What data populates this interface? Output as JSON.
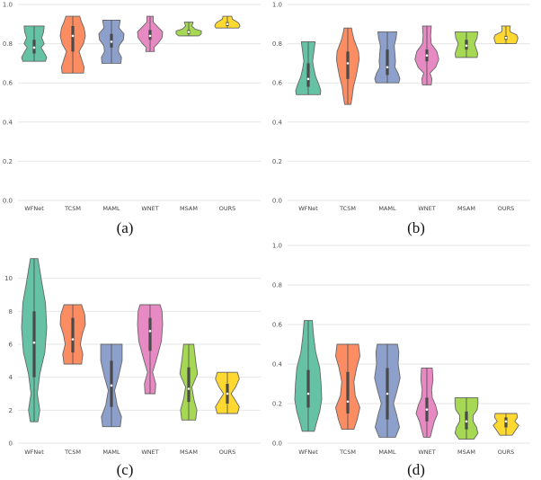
{
  "chart_data": [
    {
      "type": "violin",
      "caption": "(a)",
      "categories": [
        "WFNet",
        "TCSM",
        "MAML",
        "WNET",
        "MSAM",
        "OURS"
      ],
      "ylim": [
        0.0,
        1.0
      ],
      "yticks": [
        "0.0",
        "0.2",
        "0.4",
        "0.6",
        "0.8",
        "1.0"
      ],
      "series": [
        {
          "name": "WFNet",
          "color": "#66c2a5",
          "min": 0.71,
          "max": 0.89,
          "q1": 0.75,
          "median": 0.78,
          "q3": 0.82,
          "density": [
            [
              0.71,
              0.9
            ],
            [
              0.73,
              1.0
            ],
            [
              0.76,
              0.75
            ],
            [
              0.78,
              0.55
            ],
            [
              0.8,
              0.8
            ],
            [
              0.83,
              0.6
            ],
            [
              0.86,
              0.75
            ],
            [
              0.89,
              0.8
            ]
          ]
        },
        {
          "name": "TCSM",
          "color": "#fc8d62",
          "min": 0.65,
          "max": 0.94,
          "q1": 0.76,
          "median": 0.84,
          "q3": 0.89,
          "density": [
            [
              0.65,
              0.85
            ],
            [
              0.68,
              0.9
            ],
            [
              0.72,
              0.7
            ],
            [
              0.76,
              0.5
            ],
            [
              0.8,
              0.85
            ],
            [
              0.84,
              1.0
            ],
            [
              0.88,
              0.9
            ],
            [
              0.91,
              0.7
            ],
            [
              0.94,
              0.55
            ]
          ]
        },
        {
          "name": "MAML",
          "color": "#8da0cb",
          "min": 0.7,
          "max": 0.92,
          "q1": 0.78,
          "median": 0.81,
          "q3": 0.85,
          "density": [
            [
              0.7,
              0.75
            ],
            [
              0.73,
              0.8
            ],
            [
              0.76,
              0.55
            ],
            [
              0.79,
              0.6
            ],
            [
              0.82,
              0.95
            ],
            [
              0.85,
              1.0
            ],
            [
              0.88,
              0.6
            ],
            [
              0.92,
              0.7
            ]
          ]
        },
        {
          "name": "WNET",
          "color": "#e78ac3",
          "min": 0.76,
          "max": 0.94,
          "q1": 0.82,
          "median": 0.84,
          "q3": 0.87,
          "density": [
            [
              0.76,
              0.35
            ],
            [
              0.78,
              0.3
            ],
            [
              0.8,
              0.6
            ],
            [
              0.83,
              0.95
            ],
            [
              0.86,
              1.0
            ],
            [
              0.88,
              0.7
            ],
            [
              0.91,
              0.25
            ],
            [
              0.94,
              0.25
            ]
          ]
        },
        {
          "name": "MSAM",
          "color": "#a6d854",
          "min": 0.84,
          "max": 0.91,
          "q1": 0.85,
          "median": 0.86,
          "q3": 0.87,
          "density": [
            [
              0.84,
              0.8
            ],
            [
              0.85,
              1.0
            ],
            [
              0.865,
              1.0
            ],
            [
              0.875,
              0.5
            ],
            [
              0.89,
              0.25
            ],
            [
              0.91,
              0.35
            ]
          ]
        },
        {
          "name": "OURS",
          "color": "#ffd92f",
          "min": 0.88,
          "max": 0.94,
          "q1": 0.89,
          "median": 0.9,
          "q3": 0.91,
          "density": [
            [
              0.88,
              0.9
            ],
            [
              0.89,
              1.0
            ],
            [
              0.9,
              0.95
            ],
            [
              0.91,
              0.8
            ],
            [
              0.925,
              0.4
            ],
            [
              0.94,
              0.35
            ]
          ]
        }
      ]
    },
    {
      "type": "violin",
      "caption": "(b)",
      "categories": [
        "WFNet",
        "TCSM",
        "MAML",
        "WNET",
        "MSAM",
        "OURS"
      ],
      "ylim": [
        0.0,
        1.0
      ],
      "yticks": [
        "0.0",
        "0.2",
        "0.4",
        "0.6",
        "0.8",
        "1.0"
      ],
      "series": [
        {
          "name": "WFNet",
          "color": "#66c2a5",
          "min": 0.54,
          "max": 0.81,
          "q1": 0.58,
          "median": 0.62,
          "q3": 0.7,
          "density": [
            [
              0.54,
              0.95
            ],
            [
              0.56,
              1.0
            ],
            [
              0.59,
              0.85
            ],
            [
              0.63,
              0.6
            ],
            [
              0.67,
              0.45
            ],
            [
              0.71,
              0.35
            ],
            [
              0.76,
              0.45
            ],
            [
              0.81,
              0.55
            ]
          ]
        },
        {
          "name": "TCSM",
          "color": "#fc8d62",
          "min": 0.49,
          "max": 0.88,
          "q1": 0.62,
          "median": 0.7,
          "q3": 0.76,
          "density": [
            [
              0.49,
              0.25
            ],
            [
              0.53,
              0.35
            ],
            [
              0.58,
              0.45
            ],
            [
              0.63,
              0.65
            ],
            [
              0.68,
              0.8
            ],
            [
              0.72,
              0.9
            ],
            [
              0.76,
              0.85
            ],
            [
              0.82,
              0.5
            ],
            [
              0.86,
              0.35
            ],
            [
              0.88,
              0.3
            ]
          ]
        },
        {
          "name": "MAML",
          "color": "#8da0cb",
          "min": 0.6,
          "max": 0.86,
          "q1": 0.64,
          "median": 0.68,
          "q3": 0.77,
          "density": [
            [
              0.6,
              0.9
            ],
            [
              0.62,
              1.0
            ],
            [
              0.65,
              0.85
            ],
            [
              0.68,
              0.6
            ],
            [
              0.71,
              0.65
            ],
            [
              0.75,
              0.6
            ],
            [
              0.79,
              0.55
            ],
            [
              0.83,
              0.7
            ],
            [
              0.86,
              0.75
            ]
          ]
        },
        {
          "name": "WNET",
          "color": "#e78ac3",
          "min": 0.59,
          "max": 0.89,
          "q1": 0.71,
          "median": 0.74,
          "q3": 0.77,
          "density": [
            [
              0.59,
              0.35
            ],
            [
              0.62,
              0.4
            ],
            [
              0.65,
              0.25
            ],
            [
              0.68,
              0.7
            ],
            [
              0.72,
              0.95
            ],
            [
              0.76,
              0.8
            ],
            [
              0.8,
              0.35
            ],
            [
              0.84,
              0.3
            ],
            [
              0.89,
              0.35
            ]
          ]
        },
        {
          "name": "MSAM",
          "color": "#a6d854",
          "min": 0.73,
          "max": 0.86,
          "q1": 0.77,
          "median": 0.79,
          "q3": 0.82,
          "density": [
            [
              0.73,
              0.85
            ],
            [
              0.75,
              0.9
            ],
            [
              0.78,
              0.75
            ],
            [
              0.8,
              0.65
            ],
            [
              0.83,
              0.85
            ],
            [
              0.86,
              0.9
            ]
          ]
        },
        {
          "name": "OURS",
          "color": "#ffd92f",
          "min": 0.8,
          "max": 0.89,
          "q1": 0.82,
          "median": 0.83,
          "q3": 0.84,
          "density": [
            [
              0.8,
              0.8
            ],
            [
              0.815,
              0.9
            ],
            [
              0.83,
              0.95
            ],
            [
              0.845,
              0.85
            ],
            [
              0.86,
              0.35
            ],
            [
              0.875,
              0.3
            ],
            [
              0.89,
              0.35
            ]
          ]
        }
      ]
    },
    {
      "type": "violin",
      "caption": "(c)",
      "categories": [
        "WFNet",
        "TCSM",
        "MAML",
        "WNET",
        "MSAM",
        "OURS"
      ],
      "ylim": [
        0,
        12
      ],
      "yticks": [
        "0",
        "2",
        "4",
        "6",
        "8",
        "10"
      ],
      "series": [
        {
          "name": "WFNet",
          "color": "#66c2a5",
          "min": 1.3,
          "max": 11.2,
          "q1": 4.0,
          "median": 6.1,
          "q3": 8.0,
          "density": [
            [
              1.3,
              0.3
            ],
            [
              2.0,
              0.45
            ],
            [
              3.0,
              0.25
            ],
            [
              4.2,
              0.45
            ],
            [
              5.5,
              0.85
            ],
            [
              7.0,
              1.0
            ],
            [
              8.5,
              0.9
            ],
            [
              9.8,
              0.6
            ],
            [
              11.2,
              0.3
            ]
          ]
        },
        {
          "name": "TCSM",
          "color": "#fc8d62",
          "min": 4.8,
          "max": 8.4,
          "q1": 5.5,
          "median": 6.3,
          "q3": 7.6,
          "density": [
            [
              4.8,
              0.7
            ],
            [
              5.4,
              0.8
            ],
            [
              6.0,
              0.6
            ],
            [
              6.6,
              0.75
            ],
            [
              7.2,
              1.0
            ],
            [
              7.8,
              0.95
            ],
            [
              8.4,
              0.7
            ]
          ]
        },
        {
          "name": "MAML",
          "color": "#8da0cb",
          "min": 1.0,
          "max": 6.0,
          "q1": 2.2,
          "median": 3.5,
          "q3": 5.0,
          "density": [
            [
              1.0,
              0.7
            ],
            [
              1.6,
              0.8
            ],
            [
              2.3,
              0.45
            ],
            [
              3.2,
              0.25
            ],
            [
              4.0,
              0.55
            ],
            [
              5.0,
              0.85
            ],
            [
              6.0,
              0.85
            ]
          ]
        },
        {
          "name": "WNET",
          "color": "#e78ac3",
          "min": 3.0,
          "max": 8.4,
          "q1": 5.6,
          "median": 6.8,
          "q3": 7.6,
          "density": [
            [
              3.0,
              0.4
            ],
            [
              3.6,
              0.45
            ],
            [
              4.3,
              0.2
            ],
            [
              5.2,
              0.55
            ],
            [
              6.2,
              0.9
            ],
            [
              7.2,
              1.0
            ],
            [
              8.0,
              0.95
            ],
            [
              8.4,
              0.8
            ]
          ]
        },
        {
          "name": "MSAM",
          "color": "#a6d854",
          "min": 1.4,
          "max": 6.0,
          "q1": 2.5,
          "median": 3.3,
          "q3": 4.6,
          "density": [
            [
              1.4,
              0.55
            ],
            [
              2.0,
              0.65
            ],
            [
              2.7,
              0.4
            ],
            [
              3.4,
              0.25
            ],
            [
              4.2,
              0.7
            ],
            [
              5.0,
              0.55
            ],
            [
              6.0,
              0.4
            ]
          ]
        },
        {
          "name": "OURS",
          "color": "#ffd92f",
          "min": 1.8,
          "max": 4.3,
          "q1": 2.4,
          "median": 3.0,
          "q3": 3.6,
          "density": [
            [
              1.8,
              0.8
            ],
            [
              2.2,
              0.95
            ],
            [
              2.7,
              0.55
            ],
            [
              3.0,
              0.3
            ],
            [
              3.4,
              0.65
            ],
            [
              3.9,
              0.95
            ],
            [
              4.3,
              0.8
            ]
          ]
        }
      ]
    },
    {
      "type": "violin",
      "caption": "(d)",
      "categories": [
        "WFNet",
        "TCSM",
        "MAML",
        "WNET",
        "MSAM",
        "OURS"
      ],
      "ylim": [
        0.0,
        1.0
      ],
      "yticks": [
        "0.0",
        "0.2",
        "0.4",
        "0.6",
        "0.8",
        "1.0"
      ],
      "series": [
        {
          "name": "WFNet",
          "color": "#66c2a5",
          "min": 0.06,
          "max": 0.62,
          "q1": 0.18,
          "median": 0.25,
          "q3": 0.37,
          "density": [
            [
              0.06,
              0.45
            ],
            [
              0.1,
              0.6
            ],
            [
              0.16,
              0.85
            ],
            [
              0.22,
              1.0
            ],
            [
              0.3,
              0.95
            ],
            [
              0.38,
              0.85
            ],
            [
              0.46,
              0.55
            ],
            [
              0.54,
              0.4
            ],
            [
              0.62,
              0.3
            ]
          ]
        },
        {
          "name": "TCSM",
          "color": "#fc8d62",
          "min": 0.07,
          "max": 0.5,
          "q1": 0.15,
          "median": 0.21,
          "q3": 0.36,
          "density": [
            [
              0.07,
              0.45
            ],
            [
              0.12,
              0.7
            ],
            [
              0.18,
              0.9
            ],
            [
              0.24,
              0.55
            ],
            [
              0.31,
              0.45
            ],
            [
              0.38,
              0.65
            ],
            [
              0.44,
              0.9
            ],
            [
              0.5,
              0.8
            ]
          ]
        },
        {
          "name": "MAML",
          "color": "#8da0cb",
          "min": 0.03,
          "max": 0.5,
          "q1": 0.12,
          "median": 0.25,
          "q3": 0.38,
          "density": [
            [
              0.03,
              0.6
            ],
            [
              0.08,
              0.9
            ],
            [
              0.14,
              0.7
            ],
            [
              0.2,
              0.45
            ],
            [
              0.26,
              0.7
            ],
            [
              0.33,
              0.95
            ],
            [
              0.4,
              0.8
            ],
            [
              0.46,
              0.85
            ],
            [
              0.5,
              0.75
            ]
          ]
        },
        {
          "name": "WNET",
          "color": "#e78ac3",
          "min": 0.03,
          "max": 0.38,
          "q1": 0.11,
          "median": 0.17,
          "q3": 0.23,
          "density": [
            [
              0.03,
              0.25
            ],
            [
              0.07,
              0.4
            ],
            [
              0.11,
              0.55
            ],
            [
              0.15,
              0.8
            ],
            [
              0.19,
              0.65
            ],
            [
              0.23,
              0.4
            ],
            [
              0.27,
              0.35
            ],
            [
              0.32,
              0.45
            ],
            [
              0.38,
              0.4
            ]
          ]
        },
        {
          "name": "MSAM",
          "color": "#a6d854",
          "min": 0.02,
          "max": 0.23,
          "q1": 0.07,
          "median": 0.11,
          "q3": 0.16,
          "density": [
            [
              0.02,
              0.55
            ],
            [
              0.05,
              0.85
            ],
            [
              0.08,
              0.75
            ],
            [
              0.11,
              0.5
            ],
            [
              0.14,
              0.5
            ],
            [
              0.17,
              0.8
            ],
            [
              0.2,
              0.85
            ],
            [
              0.23,
              0.85
            ]
          ]
        },
        {
          "name": "OURS",
          "color": "#ffd92f",
          "min": 0.04,
          "max": 0.15,
          "q1": 0.08,
          "median": 0.11,
          "q3": 0.13,
          "density": [
            [
              0.04,
              0.45
            ],
            [
              0.07,
              0.75
            ],
            [
              0.09,
              0.95
            ],
            [
              0.11,
              0.65
            ],
            [
              0.13,
              0.85
            ],
            [
              0.15,
              0.8
            ]
          ]
        }
      ]
    }
  ]
}
